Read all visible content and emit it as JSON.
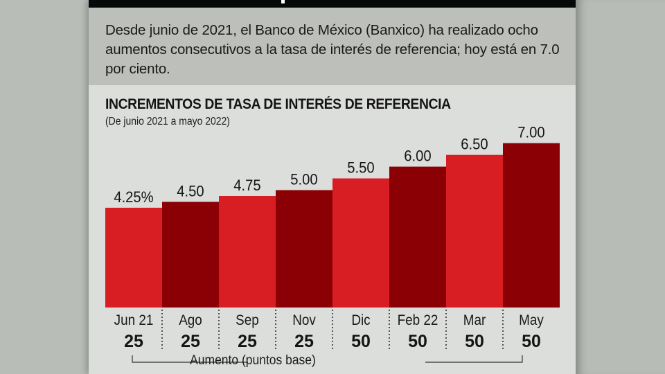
{
  "intro": {
    "text": "Desde junio de 2021, el Banco de México (Banxico) ha realizado ocho aumentos consecutivos a la tasa de interés de referencia; hoy está en 7.0 por ciento."
  },
  "chart_data": {
    "type": "bar",
    "title": "INCREMENTOS DE TASA DE INTERÉS DE REFERENCIA",
    "subtitle": "(De junio 2021 a mayo 2022)",
    "categories": [
      "Jun 21",
      "Ago",
      "Sep",
      "Nov",
      "Dic",
      "Feb 22",
      "Mar",
      "May"
    ],
    "values": [
      4.25,
      4.5,
      4.75,
      5.0,
      5.5,
      6.0,
      6.5,
      7.0
    ],
    "value_labels": [
      "4.25%",
      "4.50",
      "4.75",
      "5.00",
      "5.50",
      "6.00",
      "6.50",
      "7.00"
    ],
    "increments": [
      "25",
      "25",
      "25",
      "25",
      "50",
      "50",
      "50",
      "50"
    ],
    "increments_label": "Aumento (puntos base)",
    "ylim": [
      0,
      7
    ],
    "xlabel": "",
    "ylabel": "",
    "grid": false,
    "colors": {
      "bright": "#d81d23",
      "dark": "#8b0004"
    }
  }
}
